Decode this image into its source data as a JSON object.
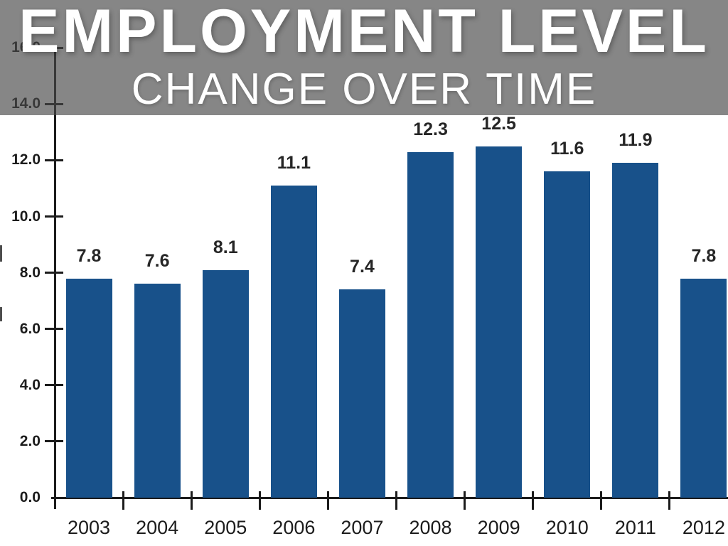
{
  "banner": {
    "title": "EMPLOYMENT LEVEL",
    "subtitle": "CHANGE OVER TIME"
  },
  "colors": {
    "banner_base": "#8a8a8a",
    "banner_overlay": "rgba(72,72,72,0.66)",
    "title_text": "#ffffff",
    "bar": "#18518a",
    "axis": "#1c1c1c",
    "tick_label": "#1c1c1c",
    "value_label": "#262626"
  },
  "chart_data": {
    "type": "bar",
    "title": "EMPLOYMENT LEVEL",
    "subtitle": "CHANGE OVER TIME",
    "categories": [
      "2003",
      "2004",
      "2005",
      "2006",
      "2007",
      "2008",
      "2009",
      "2010",
      "2011",
      "2012"
    ],
    "values": [
      7.8,
      7.6,
      8.1,
      11.1,
      7.4,
      12.3,
      12.5,
      11.6,
      11.9,
      7.8
    ],
    "data_labels": [
      "7.8",
      "7.6",
      "8.1",
      "11.1",
      "7.4",
      "12.3",
      "12.5",
      "11.6",
      "11.9",
      "7.8"
    ],
    "xlabel": "",
    "ylabel": "",
    "ylim": [
      0,
      16
    ],
    "ytick_interval": 2,
    "yticks": [
      {
        "value": 0,
        "label": "0.0"
      },
      {
        "value": 2,
        "label": "2.0"
      },
      {
        "value": 4,
        "label": "4.0"
      },
      {
        "value": 6,
        "label": "6.0"
      },
      {
        "value": 8,
        "label": "8.0"
      },
      {
        "value": 10,
        "label": "10.0"
      },
      {
        "value": 12,
        "label": "12.0"
      },
      {
        "value": 14,
        "label": "14.0"
      },
      {
        "value": 16,
        "label": "16.0"
      }
    ],
    "grid": false,
    "legend": null,
    "bar_color": "#18518a",
    "axis_color": "#1c1c1c"
  }
}
